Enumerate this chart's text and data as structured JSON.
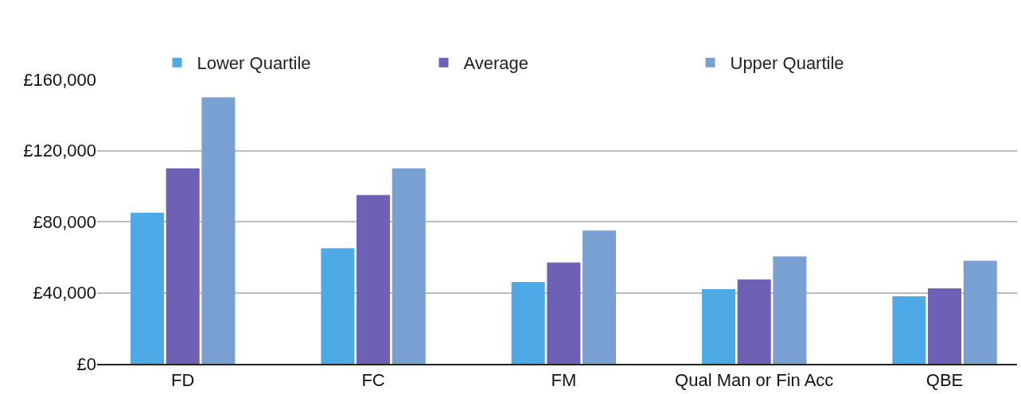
{
  "chart_data": {
    "type": "bar",
    "categories": [
      "FD",
      "FC",
      "FM",
      "Qual Man or Fin Acc",
      "QBE"
    ],
    "series": [
      {
        "name": "Lower Quartile",
        "color": "#4eaae6",
        "values": [
          85000,
          65000,
          46000,
          42000,
          38000
        ]
      },
      {
        "name": "Average",
        "color": "#6e60b5",
        "values": [
          110000,
          95000,
          57000,
          47500,
          42500
        ]
      },
      {
        "name": "Upper Quartile",
        "color": "#78a0d2",
        "values": [
          150000,
          110000,
          75000,
          60500,
          58000
        ]
      }
    ],
    "ylim": [
      0,
      160000
    ],
    "yticks": [
      {
        "value": 0,
        "label": "£0"
      },
      {
        "value": 40000,
        "label": "£40,000"
      },
      {
        "value": 80000,
        "label": "£80,000"
      },
      {
        "value": 120000,
        "label": "£120,000"
      },
      {
        "value": 160000,
        "label": "£160,000"
      }
    ],
    "grid": "y",
    "legend": "top"
  }
}
